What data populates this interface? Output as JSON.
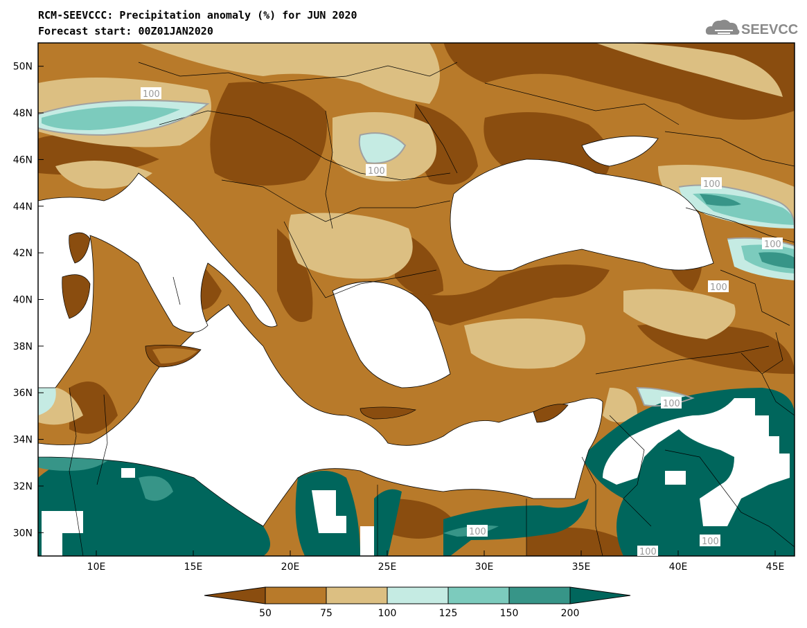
{
  "title": {
    "line1": "RCM-SEEVCCC: Precipitation anomaly (%) for JUN 2020",
    "line2": "Forecast start: 00Z01JAN2020"
  },
  "logo": {
    "text": "SEEVCCC",
    "icon": "cloud-icon"
  },
  "map": {
    "lon_range": [
      7,
      46
    ],
    "lat_range": [
      29,
      51
    ],
    "x_ticks": [
      "10E",
      "15E",
      "20E",
      "25E",
      "30E",
      "35E",
      "40E",
      "45E"
    ],
    "y_ticks": [
      "30N",
      "32N",
      "34N",
      "36N",
      "38N",
      "40N",
      "42N",
      "44N",
      "46N",
      "48N",
      "50N"
    ],
    "contour_labels": [
      "100",
      "100",
      "100",
      "100",
      "100",
      "100",
      "100",
      "100",
      "100"
    ]
  },
  "colorbar": {
    "labels": [
      "50",
      "75",
      "100",
      "125",
      "150",
      "200"
    ],
    "colors": [
      "#8a4d0f",
      "#b87a2a",
      "#dcbf82",
      "#c5ebe3",
      "#7ccbbd",
      "#379588",
      "#00665c"
    ]
  }
}
